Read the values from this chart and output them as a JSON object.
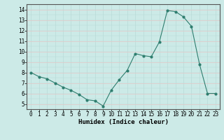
{
  "x": [
    0,
    1,
    2,
    3,
    4,
    5,
    6,
    7,
    8,
    9,
    10,
    11,
    12,
    13,
    14,
    15,
    16,
    17,
    18,
    19,
    20,
    21,
    22,
    23
  ],
  "y": [
    8.0,
    7.6,
    7.4,
    7.0,
    6.6,
    6.3,
    5.9,
    5.4,
    5.3,
    4.8,
    6.3,
    7.3,
    8.2,
    9.8,
    9.6,
    9.5,
    10.9,
    13.9,
    13.8,
    13.3,
    12.4,
    8.8,
    6.0,
    6.0
  ],
  "line_color": "#2e7d6e",
  "marker": "o",
  "marker_size": 2,
  "bg_color": "#cceae7",
  "grid_minor_color": "#b8dbd8",
  "grid_major_color": "#e8c8c8",
  "xlabel": "Humidex (Indice chaleur)",
  "ylim": [
    4.5,
    14.5
  ],
  "xlim": [
    -0.5,
    23.5
  ],
  "yticks": [
    5,
    6,
    7,
    8,
    9,
    10,
    11,
    12,
    13,
    14
  ],
  "xticks": [
    0,
    1,
    2,
    3,
    4,
    5,
    6,
    7,
    8,
    9,
    10,
    11,
    12,
    13,
    14,
    15,
    16,
    17,
    18,
    19,
    20,
    21,
    22,
    23
  ],
  "tick_fontsize": 5.5,
  "xlabel_fontsize": 6.5,
  "spine_color": "#555555"
}
